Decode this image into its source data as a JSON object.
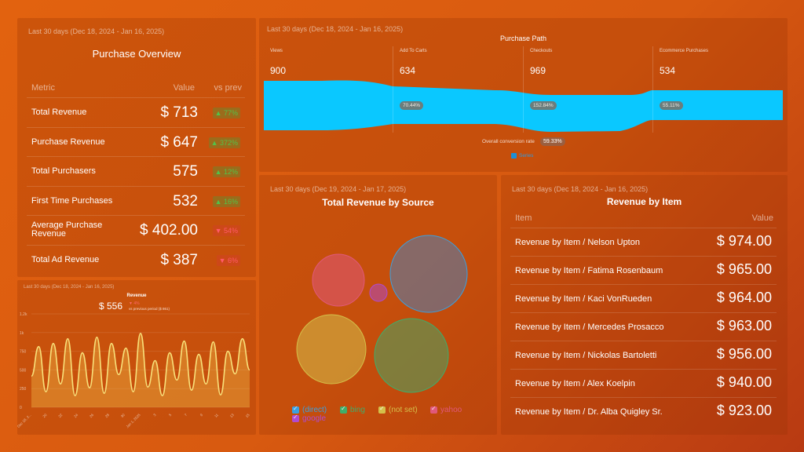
{
  "overview": {
    "period": "Last 30 days (Dec 18, 2024 - Jan 16, 2025)",
    "title": "Purchase Overview",
    "col_metric": "Metric",
    "col_value": "Value",
    "col_prev": "vs prev",
    "rows": [
      {
        "metric": "Total Revenue",
        "value": "$ 713",
        "change": "▲ 77%",
        "dir": "up"
      },
      {
        "metric": "Purchase Revenue",
        "value": "$ 647",
        "change": "▲ 372%",
        "dir": "up"
      },
      {
        "metric": "Total Purchasers",
        "value": "575",
        "change": "▲ 12%",
        "dir": "up"
      },
      {
        "metric": "First Time Purchases",
        "value": "532",
        "change": "▲ 16%",
        "dir": "up"
      },
      {
        "metric": "Average Purchase Revenue",
        "value": "$ 402.00",
        "change": "▼ 54%",
        "dir": "down"
      },
      {
        "metric": "Total Ad Revenue",
        "value": "$ 387",
        "change": "▼ 6%",
        "dir": "down"
      }
    ]
  },
  "revenue": {
    "period": "Last 30 days (Dec 18, 2024 - Jan 16, 2025)",
    "title": "Revenue",
    "value": "$ 556",
    "change": "▼ 4%",
    "prev_note": "vs previous period ($ 861)"
  },
  "path": {
    "period": "Last 30 days (Dec 18, 2024 - Jan 16, 2025)",
    "title": "Purchase Path",
    "conversion_label": "Overall conversion rate",
    "conversion_value": "59.33%",
    "legend": "Series",
    "colors": {
      "funnel": "#0ac8ff",
      "legend": "#1d8fd6"
    },
    "steps": [
      {
        "label": "Views",
        "value": "900",
        "pct": ""
      },
      {
        "label": "Add To Carts",
        "value": "634",
        "pct": "70.44%"
      },
      {
        "label": "Checkouts",
        "value": "969",
        "pct": "152.84%"
      },
      {
        "label": "Ecommerce Purchases",
        "value": "534",
        "pct": "55.11%"
      }
    ]
  },
  "source": {
    "period": "Last 30 days (Dec 19, 2024 - Jan 17, 2025)",
    "title": "Total Revenue by Source",
    "legend": [
      {
        "label": "(direct)",
        "color": "#3aa0e0"
      },
      {
        "label": "bing",
        "color": "#3fae6a"
      },
      {
        "label": "(not set)",
        "color": "#d4c04a"
      },
      {
        "label": "yahoo",
        "color": "#e0587a"
      },
      {
        "label": "google",
        "color": "#b04ad0"
      }
    ]
  },
  "items": {
    "period": "Last 30 days (Dec 18, 2024 - Jan 16, 2025)",
    "title": "Revenue by Item",
    "col_item": "Item",
    "col_value": "Value",
    "rows": [
      {
        "name": "Revenue by Item / Nelson Upton",
        "value": "$ 974.00"
      },
      {
        "name": "Revenue by Item / Fatima Rosenbaum",
        "value": "$ 965.00"
      },
      {
        "name": "Revenue by Item / Kaci VonRueden",
        "value": "$ 964.00"
      },
      {
        "name": "Revenue by Item / Mercedes Prosacco",
        "value": "$ 963.00"
      },
      {
        "name": "Revenue by Item / Nickolas Bartoletti",
        "value": "$ 956.00"
      },
      {
        "name": "Revenue by Item / Alex Koelpin",
        "value": "$ 940.00"
      },
      {
        "name": "Revenue by Item / Dr. Alba Quigley Sr.",
        "value": "$ 923.00"
      }
    ]
  },
  "chart_data": [
    {
      "type": "area",
      "title": "Revenue",
      "y_ticks": [
        "1.2k",
        "1k",
        "750",
        "500",
        "250",
        "0"
      ],
      "ylim": [
        0,
        1200
      ],
      "x_ticks": [
        "Dec 18, 2...",
        "20",
        "22",
        "24",
        "26",
        "28",
        "30",
        "Jan 1, 2025",
        "3",
        "5",
        "7",
        "9",
        "11",
        "13",
        "15"
      ],
      "values": [
        400,
        780,
        200,
        820,
        300,
        880,
        150,
        700,
        250,
        900,
        180,
        820,
        420,
        760,
        200,
        950,
        260,
        600,
        150,
        700,
        350,
        850,
        220,
        680,
        300,
        840,
        160,
        720,
        430,
        880,
        480
      ]
    },
    {
      "type": "scatter",
      "title": "Total Revenue by Source",
      "series": [
        {
          "name": "(direct)",
          "size": 100
        },
        {
          "name": "bing",
          "size": 95
        },
        {
          "name": "(not set)",
          "size": 90
        },
        {
          "name": "yahoo",
          "size": 67
        },
        {
          "name": "google",
          "size": 22
        }
      ]
    }
  ]
}
